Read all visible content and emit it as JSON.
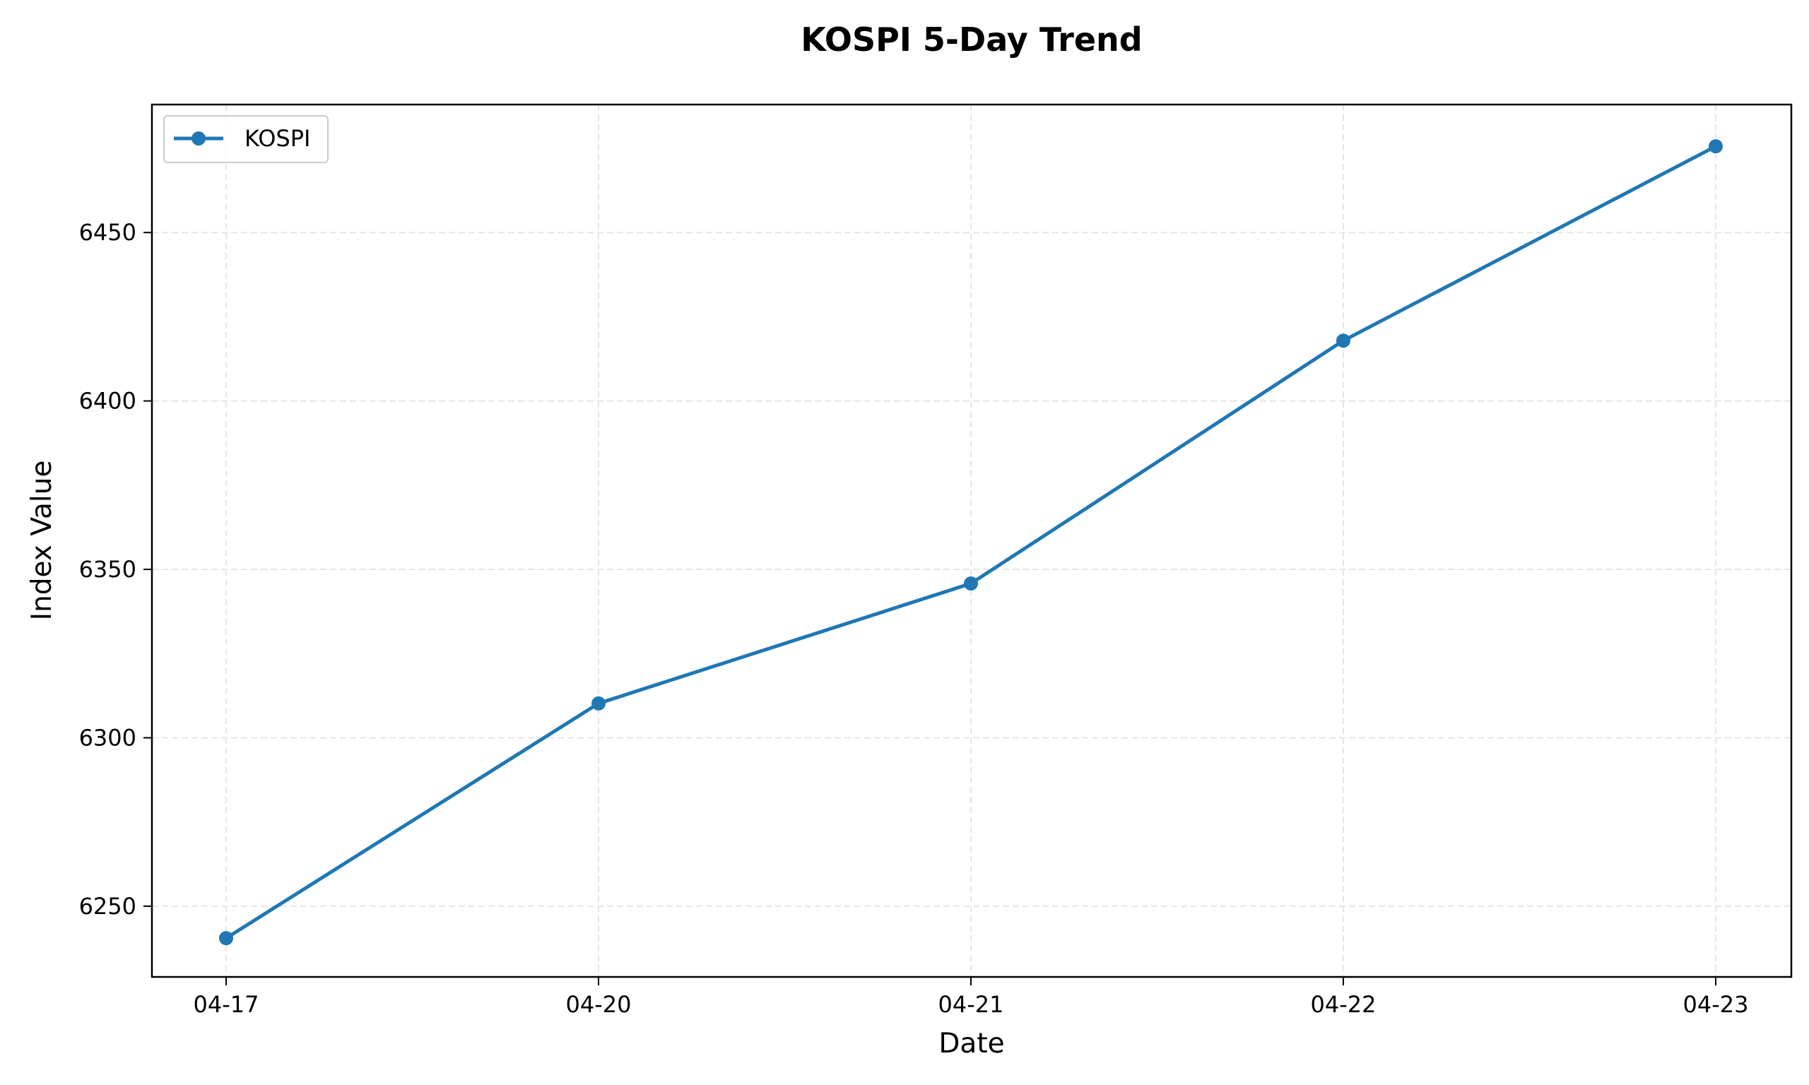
{
  "chart_data": {
    "type": "line",
    "title": "KOSPI 5-Day Trend",
    "xlabel": "Date",
    "ylabel": "Index Value",
    "categories": [
      "04-17",
      "04-20",
      "04-21",
      "04-22",
      "04-23"
    ],
    "series": [
      {
        "name": "KOSPI",
        "values": [
          6240.5,
          6310.2,
          6345.8,
          6417.9,
          6475.6
        ],
        "color": "#1f77b4"
      }
    ],
    "ylim": [
      6229,
      6488
    ],
    "yticks": [
      6250,
      6300,
      6350,
      6400,
      6450
    ],
    "grid": true,
    "legend_position": "top-left"
  }
}
